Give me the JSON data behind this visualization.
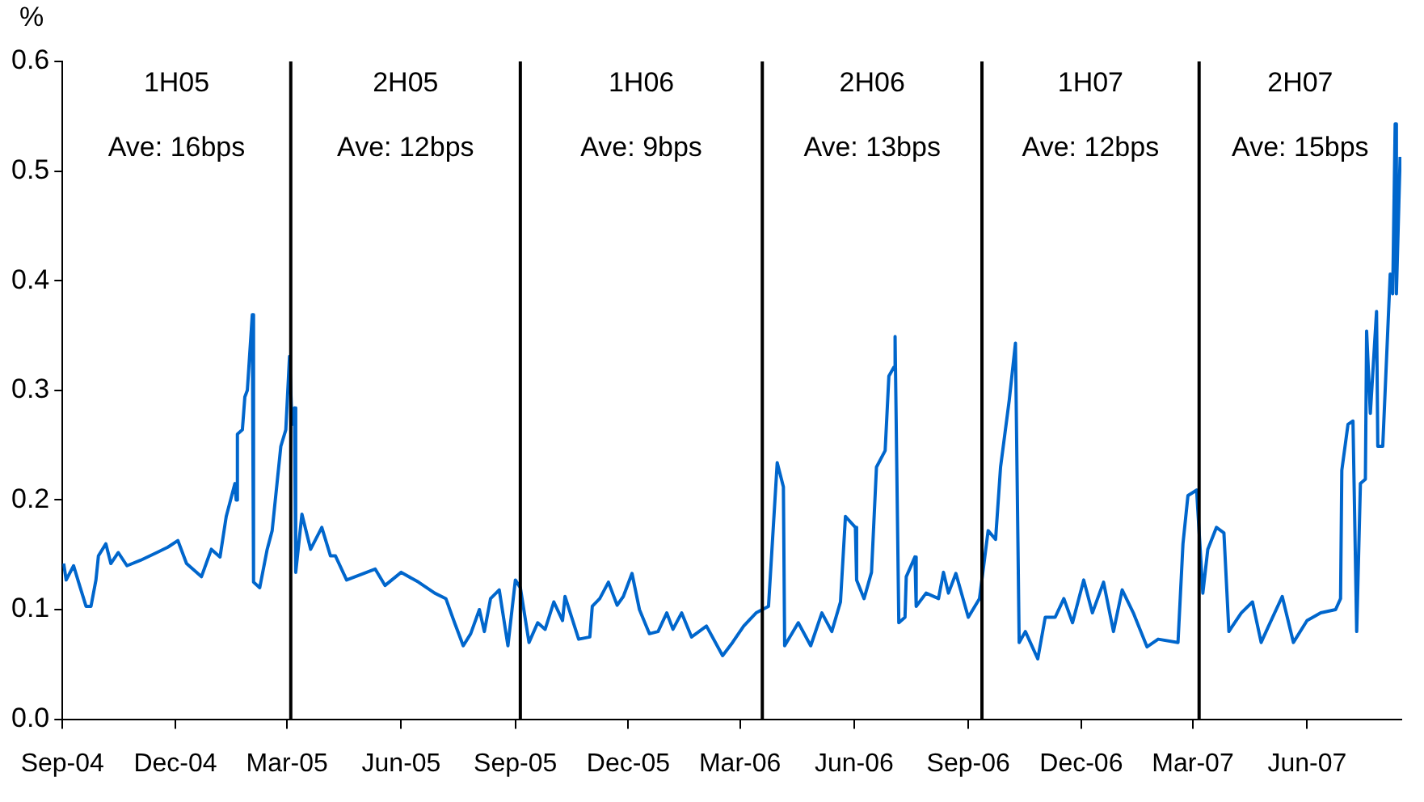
{
  "chart_data": {
    "type": "line",
    "ylabel": "%",
    "xlim": [
      "2004-09-01",
      "2007-08-16"
    ],
    "ylim": [
      0,
      0.6
    ],
    "yticks": [
      {
        "value": 0,
        "label": "0.0"
      },
      {
        "value": 0.1,
        "label": "0.1"
      },
      {
        "value": 0.2,
        "label": "0.2"
      },
      {
        "value": 0.3,
        "label": "0.3"
      },
      {
        "value": 0.4,
        "label": "0.4"
      },
      {
        "value": 0.5,
        "label": "0.5"
      },
      {
        "value": 0.6,
        "label": "0.6"
      }
    ],
    "xticks": [
      {
        "value": "2004-09-01",
        "label": "Sep-04"
      },
      {
        "value": "2004-12-01",
        "label": "Dec-04"
      },
      {
        "value": "2005-03-01",
        "label": "Mar-05"
      },
      {
        "value": "2005-06-01",
        "label": "Jun-05"
      },
      {
        "value": "2005-09-01",
        "label": "Sep-05"
      },
      {
        "value": "2005-12-01",
        "label": "Dec-05"
      },
      {
        "value": "2006-03-01",
        "label": "Mar-06"
      },
      {
        "value": "2006-06-01",
        "label": "Jun-06"
      },
      {
        "value": "2006-09-01",
        "label": "Sep-06"
      },
      {
        "value": "2006-12-01",
        "label": "Dec-06"
      },
      {
        "value": "2007-03-01",
        "label": "Mar-07"
      },
      {
        "value": "2007-06-01",
        "label": "Jun-07"
      }
    ],
    "grid": false,
    "legend": false,
    "marker": "none",
    "line_style": "solid",
    "ref_lines": [
      {
        "axis": "x",
        "value": "2005-03-04",
        "color": "#000000"
      },
      {
        "axis": "x",
        "value": "2005-09-05",
        "color": "#000000"
      },
      {
        "axis": "x",
        "value": "2006-03-19",
        "color": "#000000"
      },
      {
        "axis": "x",
        "value": "2006-09-12",
        "color": "#000000"
      },
      {
        "axis": "x",
        "value": "2007-03-06",
        "color": "#000000"
      }
    ],
    "annotations": [
      "1H05",
      "Ave: 16bps",
      "2H05",
      "Ave: 12bps",
      "1H06",
      "Ave: 9bps",
      "2H06",
      "Ave: 13bps",
      "1H07",
      "Ave: 12bps",
      "2H07",
      "Ave: 15bps"
    ],
    "series": [
      {
        "color": "#0066cc",
        "x": [
          "2004-09-02",
          "2004-09-04",
          "2004-09-10",
          "2004-09-14",
          "2004-09-20",
          "2004-09-24",
          "2004-09-28",
          "2004-09-30",
          "2004-10-06",
          "2004-10-10",
          "2004-10-16",
          "2004-10-23",
          "2004-11-03",
          "2004-11-16",
          "2004-11-25",
          "2004-12-03",
          "2004-12-10",
          "2004-12-22",
          "2004-12-30",
          "2005-01-06",
          "2005-01-11",
          "2005-01-18",
          "2005-01-19",
          "2005-01-20",
          "2005-01-24",
          "2005-01-26",
          "2005-01-28",
          "2005-02-01",
          "2005-02-02",
          "2005-02-07",
          "2005-02-13",
          "2005-02-17",
          "2005-02-24",
          "2005-02-28",
          "2005-03-03",
          "2005-03-05",
          "2005-03-07",
          "2005-03-08",
          "2005-03-13",
          "2005-03-20",
          "2005-03-29",
          "2005-04-05",
          "2005-04-09",
          "2005-04-18",
          "2005-05-11",
          "2005-05-19",
          "2005-06-01",
          "2005-06-15",
          "2005-06-28",
          "2005-07-07",
          "2005-07-14",
          "2005-07-21",
          "2005-07-27",
          "2005-08-03",
          "2005-08-07",
          "2005-08-12",
          "2005-08-19",
          "2005-08-26",
          "2005-09-01",
          "2005-09-05",
          "2005-09-12",
          "2005-09-19",
          "2005-09-25",
          "2005-10-02",
          "2005-10-09",
          "2005-10-11",
          "2005-10-22",
          "2005-10-31",
          "2005-11-02",
          "2005-11-08",
          "2005-11-15",
          "2005-11-22",
          "2005-11-27",
          "2005-12-04",
          "2005-12-10",
          "2005-12-18",
          "2005-12-25",
          "2006-01-01",
          "2006-01-06",
          "2006-01-13",
          "2006-01-21",
          "2006-02-02",
          "2006-02-15",
          "2006-02-23",
          "2006-03-04",
          "2006-03-14",
          "2006-03-24",
          "2006-03-31",
          "2006-04-05",
          "2006-04-06",
          "2006-04-17",
          "2006-04-27",
          "2006-05-06",
          "2006-05-14",
          "2006-05-21",
          "2006-05-25",
          "2006-06-02",
          "2006-06-03",
          "2006-06-09",
          "2006-06-15",
          "2006-06-19",
          "2006-06-26",
          "2006-06-29",
          "2006-07-03",
          "2006-07-04",
          "2006-07-07",
          "2006-07-12",
          "2006-07-13",
          "2006-07-20",
          "2006-07-21",
          "2006-07-29",
          "2006-08-08",
          "2006-08-12",
          "2006-08-16",
          "2006-08-22",
          "2006-09-01",
          "2006-09-10",
          "2006-09-17",
          "2006-09-23",
          "2006-09-27",
          "2006-10-04",
          "2006-10-09",
          "2006-10-12",
          "2006-10-17",
          "2006-10-27",
          "2006-11-02",
          "2006-11-10",
          "2006-11-17",
          "2006-11-24",
          "2006-12-03",
          "2006-12-10",
          "2006-12-19",
          "2006-12-27",
          "2007-01-03",
          "2007-01-12",
          "2007-01-23",
          "2007-02-01",
          "2007-02-17",
          "2007-02-21",
          "2007-02-25",
          "2007-03-04",
          "2007-03-09",
          "2007-03-13",
          "2007-03-20",
          "2007-03-26",
          "2007-03-30",
          "2007-04-09",
          "2007-04-18",
          "2007-04-25",
          "2007-05-01",
          "2007-05-12",
          "2007-05-21",
          "2007-06-01",
          "2007-06-12",
          "2007-06-24",
          "2007-06-28",
          "2007-06-29",
          "2007-07-04",
          "2007-07-08",
          "2007-07-11",
          "2007-07-14",
          "2007-07-18",
          "2007-07-19",
          "2007-07-22",
          "2007-07-27",
          "2007-07-28",
          "2007-08-01",
          "2007-08-07",
          "2007-08-09",
          "2007-08-11",
          "2007-08-12",
          "2007-08-15"
        ],
        "values": [
          0.142,
          0.127,
          0.14,
          0.125,
          0.103,
          0.103,
          0.127,
          0.149,
          0.16,
          0.142,
          0.152,
          0.14,
          0.145,
          0.152,
          0.157,
          0.163,
          0.142,
          0.13,
          0.155,
          0.148,
          0.185,
          0.215,
          0.2,
          0.26,
          0.264,
          0.294,
          0.3,
          0.369,
          0.125,
          0.12,
          0.155,
          0.172,
          0.249,
          0.264,
          0.331,
          0.269,
          0.284,
          0.134,
          0.187,
          0.155,
          0.175,
          0.149,
          0.149,
          0.127,
          0.137,
          0.122,
          0.134,
          0.125,
          0.115,
          0.11,
          0.088,
          0.067,
          0.078,
          0.1,
          0.08,
          0.11,
          0.118,
          0.067,
          0.127,
          0.12,
          0.07,
          0.088,
          0.082,
          0.107,
          0.09,
          0.112,
          0.073,
          0.075,
          0.103,
          0.11,
          0.125,
          0.104,
          0.112,
          0.133,
          0.1,
          0.078,
          0.08,
          0.097,
          0.082,
          0.097,
          0.075,
          0.085,
          0.058,
          0.07,
          0.085,
          0.097,
          0.103,
          0.234,
          0.212,
          0.067,
          0.088,
          0.067,
          0.097,
          0.08,
          0.107,
          0.185,
          0.175,
          0.127,
          0.11,
          0.134,
          0.23,
          0.245,
          0.313,
          0.321,
          0.349,
          0.088,
          0.093,
          0.13,
          0.148,
          0.103,
          0.115,
          0.11,
          0.134,
          0.115,
          0.133,
          0.093,
          0.11,
          0.172,
          0.164,
          0.23,
          0.291,
          0.343,
          0.07,
          0.08,
          0.055,
          0.093,
          0.093,
          0.11,
          0.088,
          0.127,
          0.097,
          0.125,
          0.08,
          0.118,
          0.097,
          0.066,
          0.073,
          0.07,
          0.16,
          0.204,
          0.209,
          0.115,
          0.155,
          0.175,
          0.17,
          0.08,
          0.097,
          0.107,
          0.07,
          0.085,
          0.112,
          0.07,
          0.09,
          0.097,
          0.1,
          0.11,
          0.227,
          0.269,
          0.272,
          0.08,
          0.215,
          0.219,
          0.354,
          0.279,
          0.372,
          0.249,
          0.249,
          0.406,
          0.388,
          0.543,
          0.388,
          0.513
        ]
      }
    ]
  }
}
